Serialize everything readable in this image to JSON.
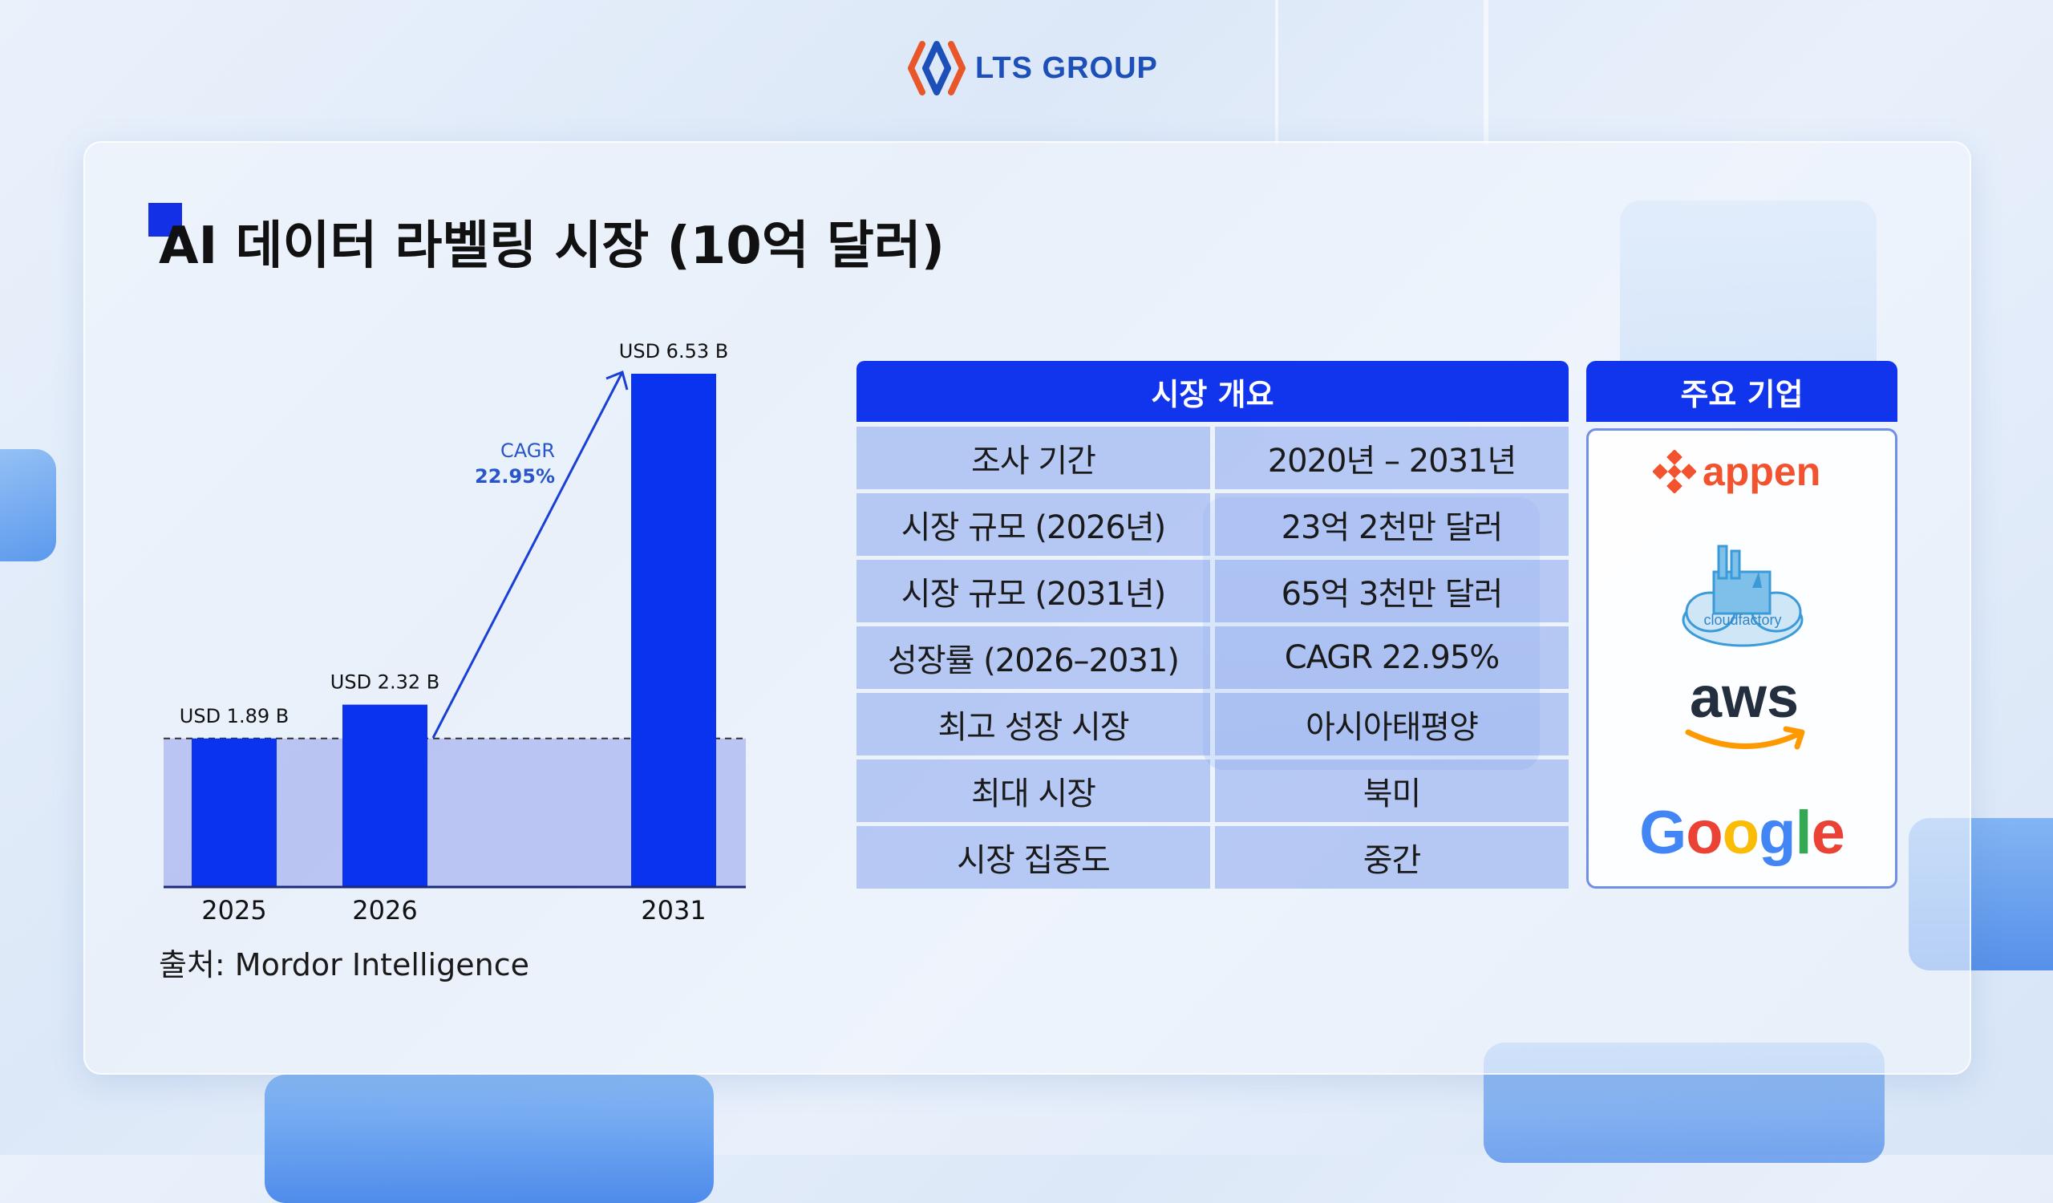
{
  "header": {
    "logo_text": "LTS GROUP"
  },
  "slide": {
    "title": "AI 데이터 라벨링 시장 (10억 달러)",
    "source": "출처: Mordor Intelligence"
  },
  "chart_data": {
    "type": "bar",
    "title": "AI 데이터 라벨링 시장 (10억 달러)",
    "categories": [
      "2025",
      "2026",
      "2031"
    ],
    "values": [
      1.89,
      2.32,
      6.53
    ],
    "data_labels": [
      "USD 1.89 B",
      "USD 2.32 B",
      "USD 6.53 B"
    ],
    "annotation": {
      "label": "CAGR",
      "value": "22.95%",
      "from": "2026",
      "to": "2031"
    },
    "reference_line": 1.89,
    "ylim": [
      0,
      6.53
    ],
    "colors": {
      "bar": "#0a33f0",
      "band": "#aab6f0",
      "arrow": "#1a3fd6"
    }
  },
  "overview": {
    "header": "시장 개요",
    "rows": [
      {
        "label": "조사 기간",
        "value": "2020년 – 2031년"
      },
      {
        "label": "시장 규모 (2026년)",
        "value": "23억 2천만 달러"
      },
      {
        "label": "시장 규모 (2031년)",
        "value": "65억 3천만 달러"
      },
      {
        "label": "성장률 (2026–2031)",
        "value": "CAGR 22.95%"
      },
      {
        "label": "최고 성장 시장",
        "value": "아시아태평양"
      },
      {
        "label": "최대 시장",
        "value": "북미"
      },
      {
        "label": "시장 집중도",
        "value": "중간"
      }
    ]
  },
  "companies": {
    "header": "주요 기업",
    "logos": [
      {
        "name": "appen",
        "icon": "appen-logo"
      },
      {
        "name": "cloudfactory",
        "icon": "cloudfactory-logo"
      },
      {
        "name": "aws",
        "icon": "aws-logo"
      },
      {
        "name": "Google",
        "icon": "google-logo"
      }
    ]
  }
}
